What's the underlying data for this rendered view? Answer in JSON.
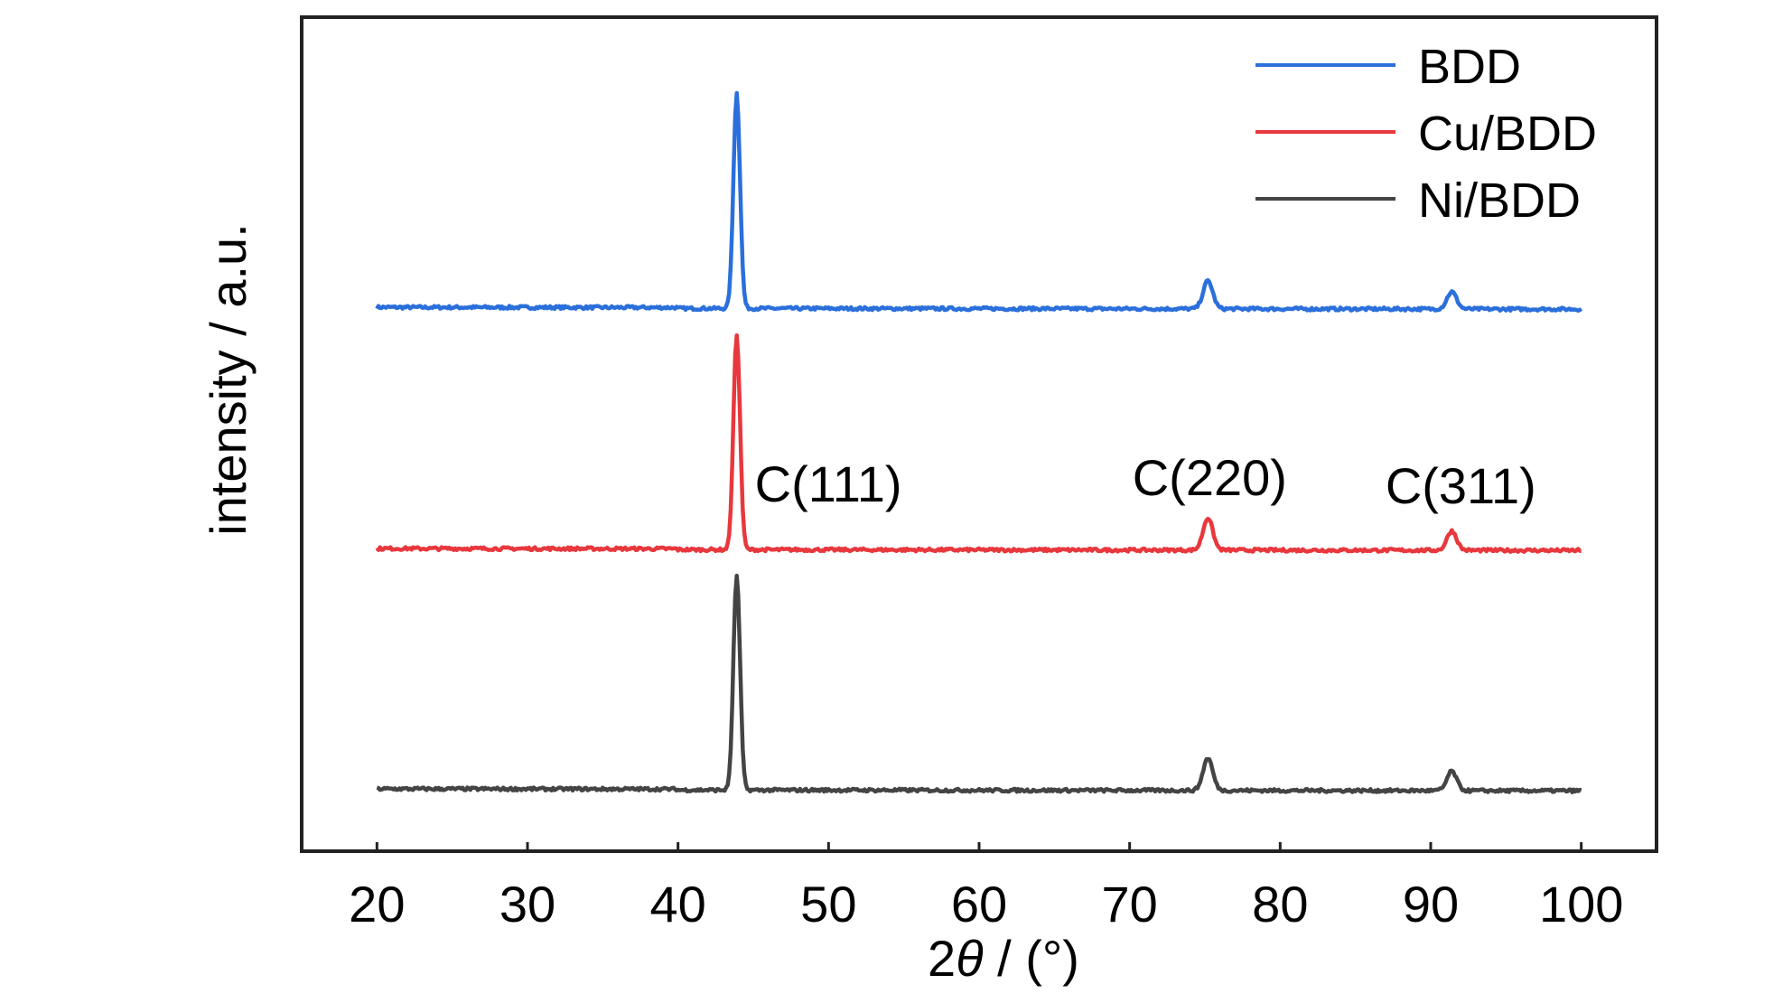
{
  "chart_data": {
    "type": "line",
    "xlabel_prefix": "2",
    "xlabel_symbol": "θ",
    "xlabel_suffix": " / (°)",
    "ylabel": "intensity / a.u.",
    "xlim": [
      15,
      105
    ],
    "x_ticks": [
      20,
      30,
      40,
      50,
      60,
      70,
      80,
      90,
      100
    ],
    "x_tick_labels": [
      "20",
      "30",
      "40",
      "50",
      "60",
      "70",
      "80",
      "90",
      "100"
    ],
    "y_ticks_shown": false,
    "grid": false,
    "legend_position": "top-right",
    "series": [
      {
        "name": "BDD",
        "color": "#2a6fdb",
        "baseline": 0.0,
        "peaks": [
          {
            "x": 43.9,
            "height": 1.0
          },
          {
            "x": 75.2,
            "height": 0.13
          },
          {
            "x": 91.4,
            "height": 0.08
          }
        ]
      },
      {
        "name": "Cu/BDD",
        "color": "#e8383d",
        "baseline": 0.0,
        "peaks": [
          {
            "x": 43.9,
            "height": 1.0
          },
          {
            "x": 75.2,
            "height": 0.15
          },
          {
            "x": 91.4,
            "height": 0.09
          }
        ]
      },
      {
        "name": "Ni/BDD",
        "color": "#444444",
        "baseline": 0.0,
        "peaks": [
          {
            "x": 43.9,
            "height": 1.0
          },
          {
            "x": 75.2,
            "height": 0.15
          },
          {
            "x": 91.4,
            "height": 0.09
          }
        ]
      }
    ],
    "annotations": [
      {
        "text": "C(111)",
        "x": 43.9
      },
      {
        "text": "C(220)",
        "x": 75.2
      },
      {
        "text": "C(311)",
        "x": 91.4
      }
    ]
  }
}
